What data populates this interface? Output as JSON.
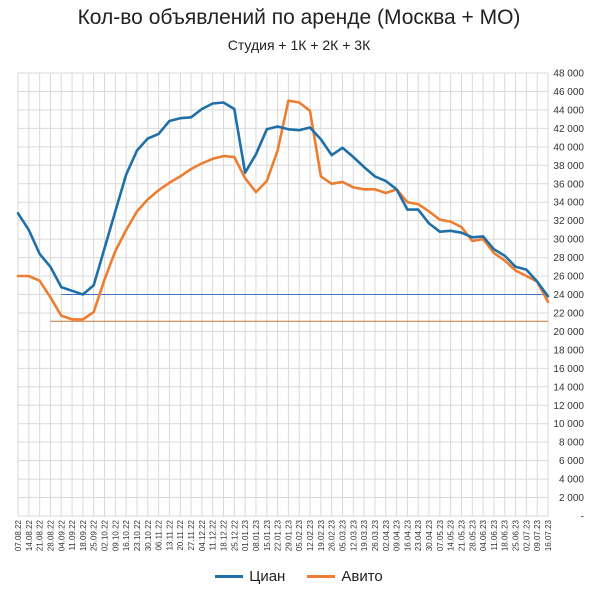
{
  "colors": {
    "cian": "#1f6fa8",
    "avito": "#ed7d31",
    "cian_ref": "#4472c4",
    "avito_ref": "#c07a3a",
    "grid": "#d9d9d9"
  },
  "chart_data": {
    "type": "line",
    "title": "Кол-во объявлений по аренде (Москва + МО)",
    "subtitle": "Студия + 1К + 2К + 3К",
    "ylim": [
      0,
      48000
    ],
    "ytick_labels": [
      "-",
      "2 000",
      "4 000",
      "6 000",
      "8 000",
      "10 000",
      "12 000",
      "14 000",
      "16 000",
      "18 000",
      "20 000",
      "22 000",
      "24 000",
      "26 000",
      "28 000",
      "30 000",
      "32 000",
      "34 000",
      "36 000",
      "38 000",
      "40 000",
      "42 000",
      "44 000",
      "46 000",
      "48 000"
    ],
    "grid": true,
    "legend_position": "bottom",
    "x": [
      "07.08.22",
      "14.08.22",
      "21.08.22",
      "28.08.22",
      "04.09.22",
      "11.09.22",
      "18.09.22",
      "25.09.22",
      "02.10.22",
      "09.10.22",
      "16.10.22",
      "23.10.22",
      "30.10.22",
      "06.11.22",
      "13.11.22",
      "20.11.22",
      "27.11.22",
      "04.12.22",
      "11.12.22",
      "18.12.22",
      "25.12.22",
      "01.01.23",
      "08.01.23",
      "15.01.23",
      "22.01.23",
      "29.01.23",
      "05.02.23",
      "12.02.23",
      "19.02.23",
      "26.02.23",
      "05.03.23",
      "12.03.23",
      "19.03.23",
      "26.03.23",
      "02.04.23",
      "09.04.23",
      "16.04.23",
      "23.04.23",
      "30.04.23",
      "07.05.23",
      "14.05.23",
      "21.05.23",
      "28.05.23",
      "04.06.23",
      "11.06.23",
      "18.06.23",
      "25.06.23",
      "02.07.23",
      "09.07.23",
      "16.07.23"
    ],
    "series": [
      {
        "name": "Циан",
        "values": [
          32800,
          31000,
          28400,
          27000,
          24800,
          24400,
          24000,
          25000,
          29000,
          33000,
          37000,
          39600,
          40900,
          41400,
          42800,
          43100,
          43200,
          44100,
          44700,
          44800,
          44100,
          37200,
          39200,
          41900,
          42200,
          41900,
          41800,
          42100,
          40800,
          39100,
          39900,
          38900,
          37800,
          36800,
          36300,
          35400,
          33200,
          33200,
          31700,
          30800,
          30900,
          30700,
          30200,
          30300,
          28900,
          28200,
          27000,
          26700,
          25400,
          23800
        ]
      },
      {
        "name": "Авито",
        "values": [
          26000,
          26000,
          25500,
          23700,
          21700,
          21300,
          21300,
          22100,
          25600,
          28700,
          31000,
          33000,
          34300,
          35300,
          36100,
          36800,
          37600,
          38200,
          38700,
          39000,
          38900,
          36600,
          35100,
          36300,
          39600,
          45000,
          44800,
          43900,
          36800,
          36000,
          36200,
          35600,
          35400,
          35400,
          35000,
          35400,
          34000,
          33800,
          33000,
          32100,
          31900,
          31300,
          29800,
          30000,
          28500,
          27700,
          26600,
          26000,
          25400,
          23200
        ]
      }
    ],
    "reference_lines": [
      {
        "series": "Циан",
        "value": 24000
      },
      {
        "series": "Авито",
        "value": 21100
      }
    ]
  }
}
